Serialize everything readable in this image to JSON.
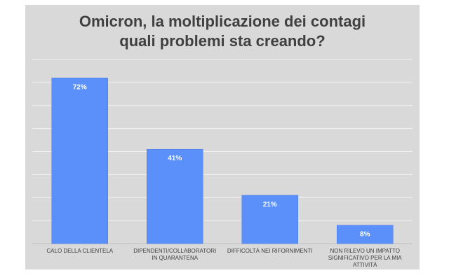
{
  "chart_data": {
    "type": "bar",
    "title_lines": [
      "Omicron, la moltiplicazione dei contagi",
      "quali problemi sta creando?"
    ],
    "categories": [
      [
        "CALO DELLA CLIENTELA"
      ],
      [
        "DIPENDENTI/COLLABORATORI",
        "IN QUARANTENA"
      ],
      [
        "DIFFICOLTÀ NEI RIFORNIMENTI"
      ],
      [
        "NON RILEVO UN IMPATTO",
        "SIGNIFICATIVO PER LA MIA",
        "ATTIVITÀ"
      ]
    ],
    "values": [
      72,
      41,
      21,
      8
    ],
    "data_labels": [
      "72%",
      "41%",
      "21%",
      "8%"
    ],
    "ylim": [
      0,
      80
    ],
    "grid": true,
    "colors": {
      "bar": "#5b8ff9",
      "bar_outline": "#4a7be0",
      "panel": "#d9d9d9",
      "grid": "#f2f2f2",
      "text": "#404040"
    }
  }
}
